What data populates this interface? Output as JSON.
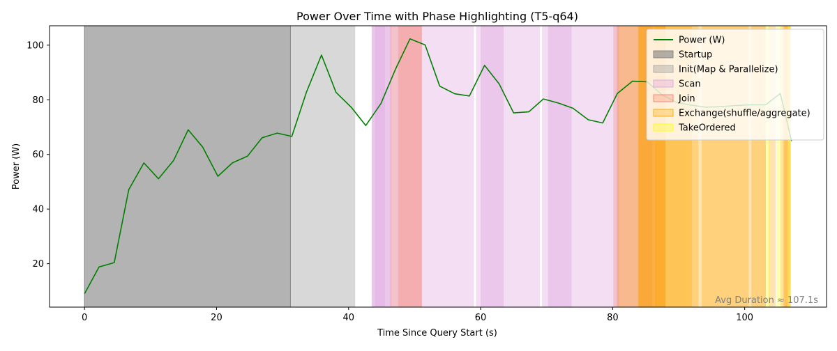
{
  "chart_data": {
    "type": "line",
    "title": "Power Over Time with Phase Highlighting (T5-q64)",
    "xlabel": "Time Since Query Start (s)",
    "ylabel": "Power (W)",
    "xlim": [
      -5.3,
      112.4
    ],
    "ylim": [
      4.1,
      107.1
    ],
    "xticks": [
      0,
      20,
      40,
      60,
      80,
      100
    ],
    "yticks": [
      20,
      40,
      60,
      80,
      100
    ],
    "grid": false,
    "legend_position": "top-right",
    "annotation": "Avg Duration ≈ 107.1s",
    "series": [
      {
        "name": "Power (W)",
        "color": "#008000",
        "x": [
          0,
          2.2,
          4.5,
          6.7,
          9.0,
          11.2,
          13.5,
          15.7,
          17.9,
          20.2,
          22.4,
          24.7,
          26.9,
          29.2,
          31.4,
          33.6,
          35.9,
          38.1,
          40.4,
          42.6,
          44.9,
          47.1,
          49.3,
          51.6,
          53.8,
          56.1,
          58.3,
          60.6,
          62.8,
          65.0,
          67.3,
          69.5,
          71.8,
          74.0,
          76.3,
          78.5,
          80.7,
          83.0,
          85.2,
          87.5,
          89.7,
          92.0,
          94.2,
          96.4,
          98.7,
          100.9,
          103.2,
          105.4,
          107.1
        ],
        "y": [
          9.0,
          18.8,
          20.4,
          47.1,
          56.9,
          51.1,
          57.8,
          69.0,
          62.7,
          52.0,
          56.9,
          59.4,
          66.1,
          67.8,
          66.6,
          82.7,
          96.4,
          82.7,
          77.3,
          70.6,
          78.6,
          91.2,
          102.3,
          100.1,
          85.0,
          82.2,
          81.4,
          92.6,
          85.9,
          75.2,
          75.6,
          80.3,
          78.8,
          76.9,
          72.7,
          71.5,
          82.3,
          86.8,
          86.6,
          81.8,
          79.0,
          78.0,
          77.3,
          77.5,
          77.9,
          78.2,
          78.2,
          82.3,
          64.9
        ]
      }
    ],
    "phases": [
      {
        "name": "Startup",
        "color": "#808080",
        "opacity": 0.6,
        "intervals": [
          [
            0,
            31.2
          ]
        ]
      },
      {
        "name": "Init(Map & Parallelize)",
        "color": "#a9a9a9",
        "opacity": 0.45,
        "intervals": [
          [
            31.2,
            41.0
          ]
        ]
      },
      {
        "name": "Scan",
        "color": "#dda0dd",
        "opacity": 0.35,
        "intervals": [
          [
            43.5,
            46.0
          ],
          [
            43.5,
            45.5
          ],
          [
            44.0,
            46.5
          ],
          [
            46.0,
            51.0
          ],
          [
            51.0,
            59.0
          ],
          [
            59.3,
            60.0
          ],
          [
            60.0,
            63.5
          ],
          [
            60.0,
            63.5
          ],
          [
            63.5,
            69.0
          ],
          [
            69.3,
            70.2
          ],
          [
            70.2,
            73.8
          ],
          [
            70.2,
            74.0
          ],
          [
            74.0,
            80.0
          ],
          [
            80.0,
            81.0
          ],
          [
            80.6,
            88.0
          ]
        ]
      },
      {
        "name": "Join",
        "color": "#fa8072",
        "opacity": 0.3,
        "intervals": [
          [
            46.3,
            51.1
          ],
          [
            47.5,
            51.1
          ],
          [
            80.1,
            86.0
          ],
          [
            83.9,
            88.0
          ]
        ]
      },
      {
        "name": "Exchange(shuffle/aggregate)",
        "color": "#ffa500",
        "opacity": 0.3,
        "intervals": [
          [
            80.7,
            88.0
          ],
          [
            83.8,
            86.6
          ],
          [
            84.0,
            92.0
          ],
          [
            86.5,
            93.0
          ],
          [
            86.5,
            93.3
          ],
          [
            93.3,
            100.6
          ],
          [
            93.5,
            102.0
          ],
          [
            101.0,
            103.2
          ],
          [
            102.0,
            103.2
          ],
          [
            103.6,
            104.7
          ],
          [
            105.4,
            106.9
          ],
          [
            105.8,
            106.5
          ],
          [
            106.0,
            107.0
          ]
        ]
      },
      {
        "name": "TakeOrdered",
        "color": "#ffff00",
        "opacity": 0.3,
        "intervals": [
          [
            103.2,
            103.8
          ],
          [
            104.8,
            105.6
          ],
          [
            106.6,
            107.0
          ]
        ]
      }
    ],
    "legend": [
      {
        "label": "Power (W)",
        "kind": "line",
        "color": "#008000"
      },
      {
        "label": "Startup",
        "kind": "patch",
        "color": "#808080",
        "opacity": 0.6
      },
      {
        "label": "Init(Map & Parallelize)",
        "kind": "patch",
        "color": "#a9a9a9",
        "opacity": 0.45
      },
      {
        "label": "Scan",
        "kind": "patch",
        "color": "#dda0dd",
        "opacity": 0.35
      },
      {
        "label": "Join",
        "kind": "patch",
        "color": "#fa8072",
        "opacity": 0.3
      },
      {
        "label": "Exchange(shuffle/aggregate)",
        "kind": "patch",
        "color": "#ffa500",
        "opacity": 0.3
      },
      {
        "label": "TakeOrdered",
        "kind": "patch",
        "color": "#ffff00",
        "opacity": 0.3
      }
    ]
  }
}
